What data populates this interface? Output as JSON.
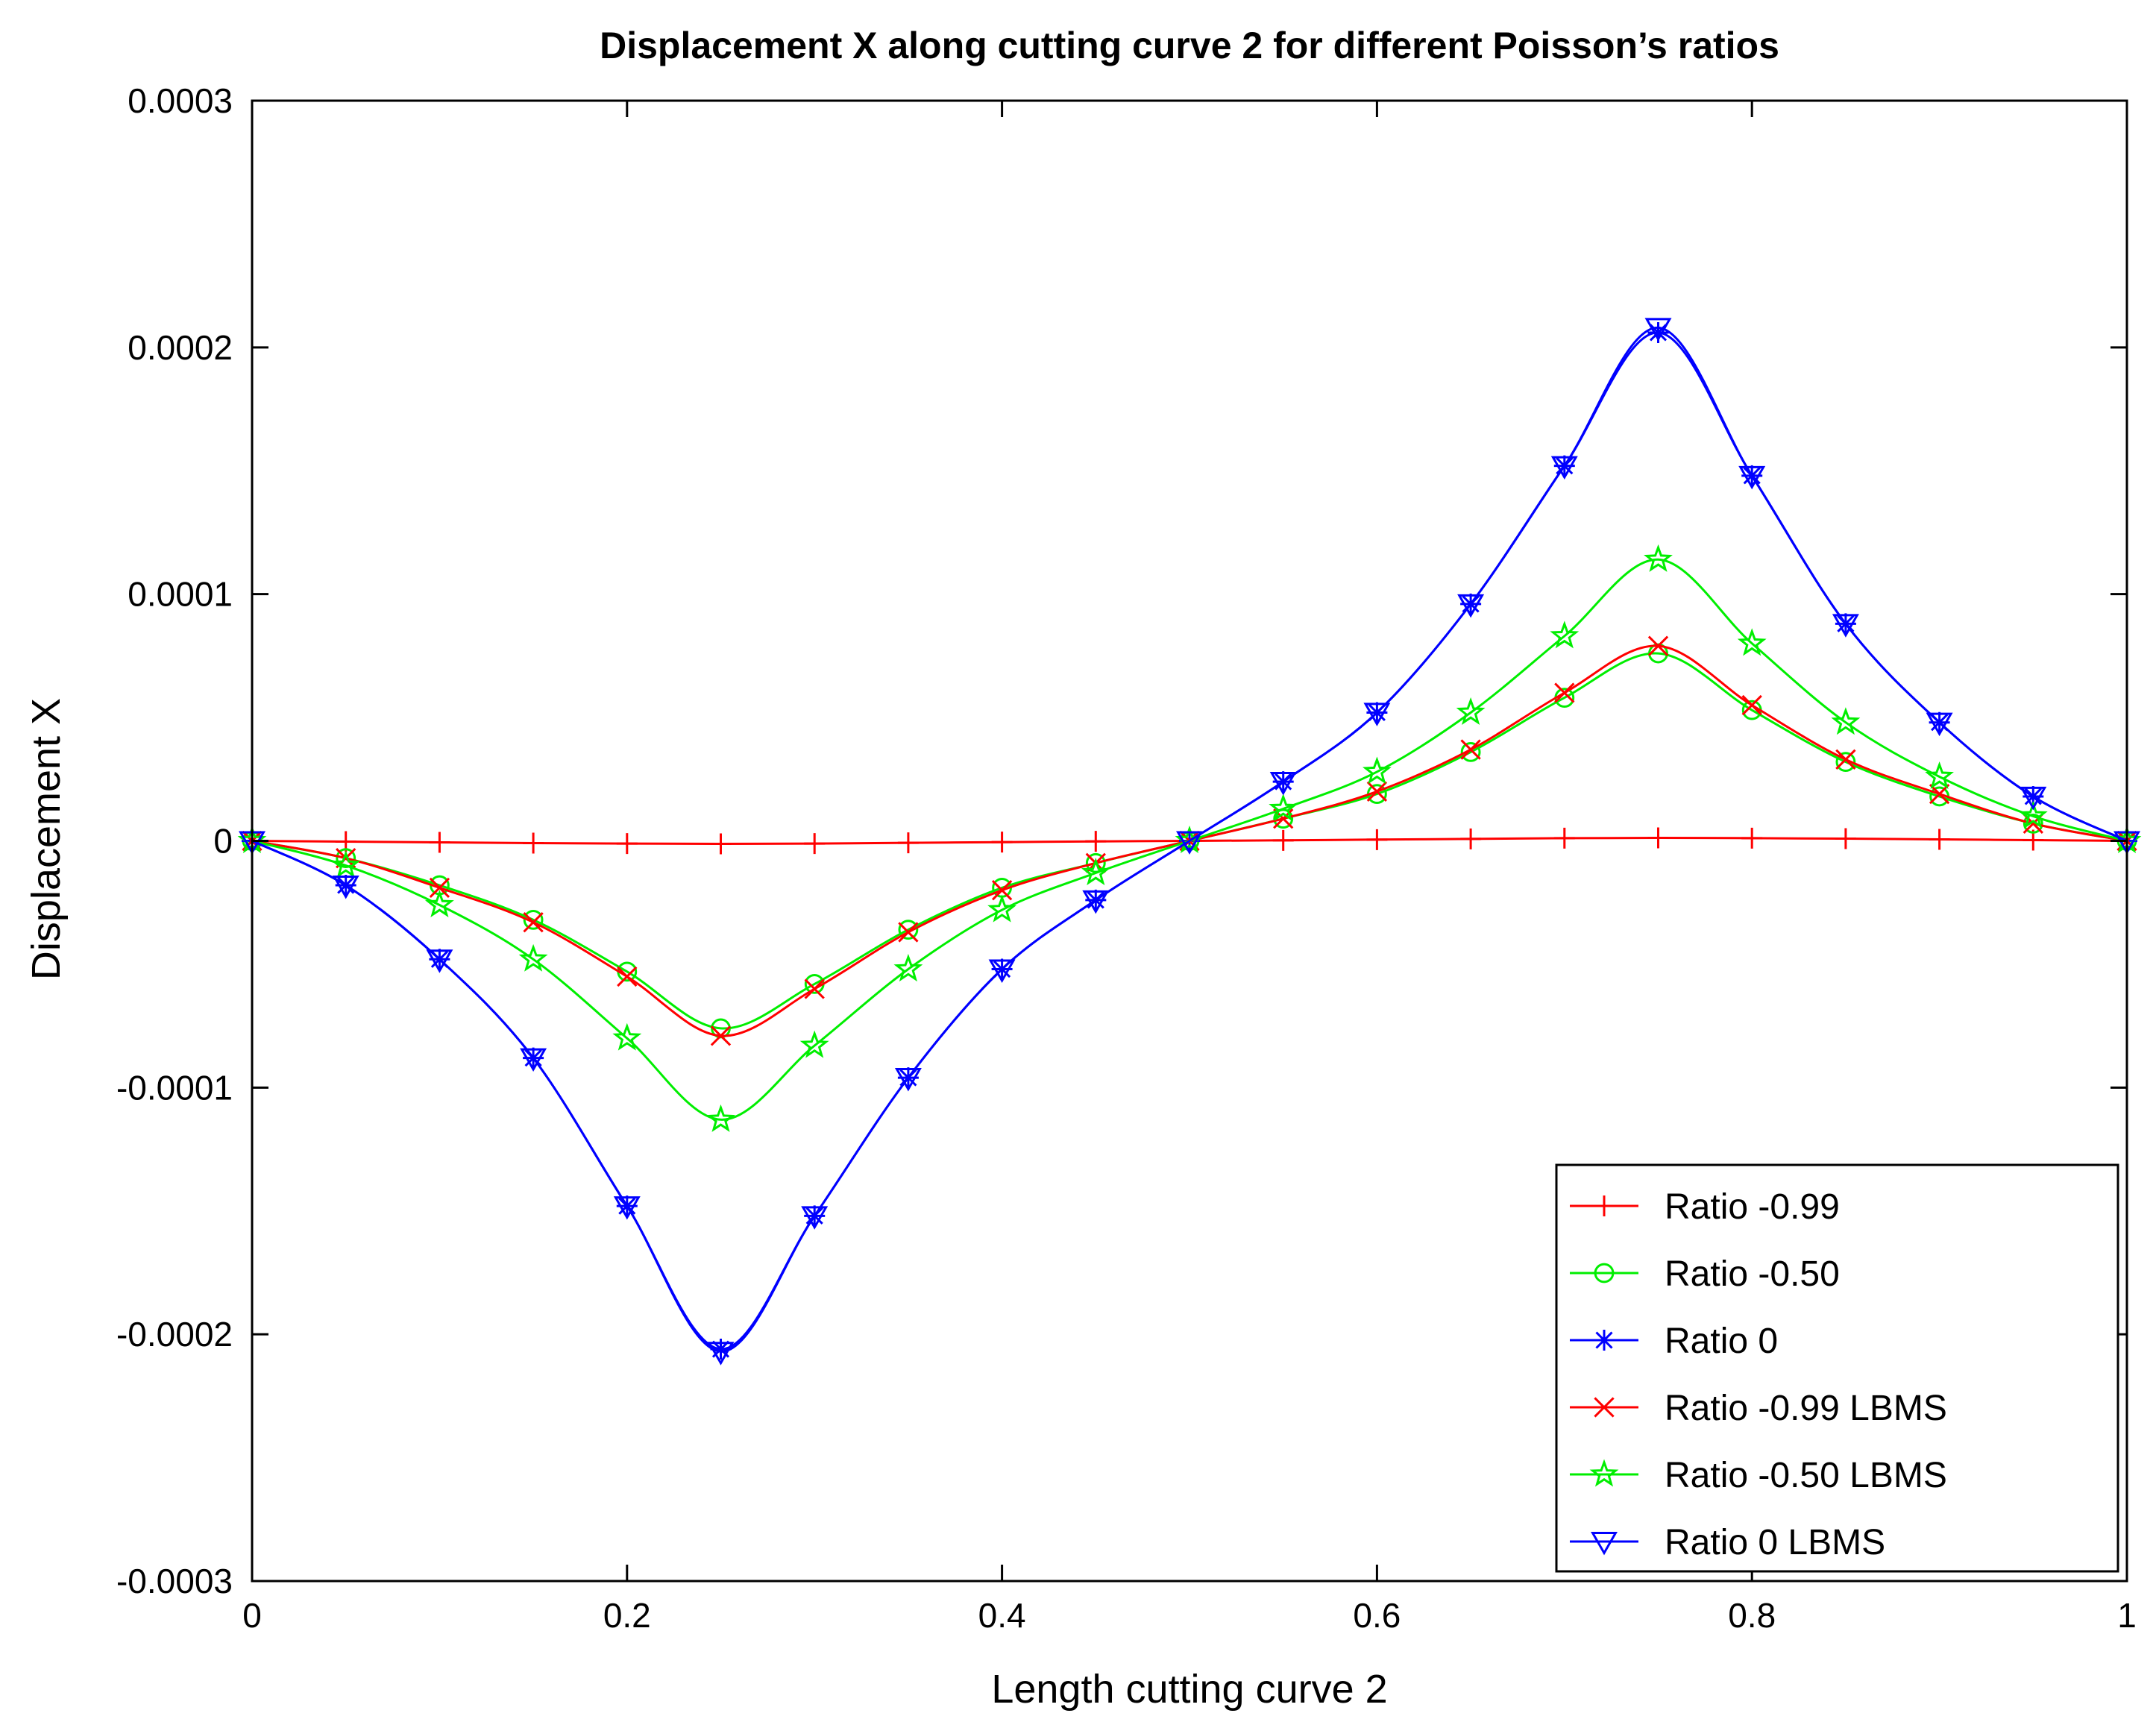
{
  "chart_data": {
    "type": "line",
    "title": "Displacement X along cutting curve 2 for different Poisson’s ratios",
    "xlabel": "Length cutting curve 2",
    "ylabel": "Displacement X",
    "xlim": [
      0,
      1
    ],
    "ylim": [
      -0.0003,
      0.0003
    ],
    "x_ticks": [
      0,
      0.2,
      0.4,
      0.6,
      0.8,
      1
    ],
    "x_tick_labels": [
      "0",
      "0.2",
      "0.4",
      "0.6",
      "0.8",
      "1"
    ],
    "y_ticks": [
      -0.0003,
      -0.0002,
      -0.0001,
      0,
      0.0001,
      0.0002,
      0.0003
    ],
    "y_tick_labels": [
      "-0.0003",
      "-0.0002",
      "-0.0001",
      "0",
      "0.0001",
      "0.0002",
      "0.0003"
    ],
    "legend_position": "bottom-right",
    "x": [
      0,
      0.05,
      0.1,
      0.15,
      0.2,
      0.25,
      0.3,
      0.35,
      0.4,
      0.45,
      0.5,
      0.55,
      0.6,
      0.65,
      0.7,
      0.75,
      0.8,
      0.85,
      0.9,
      0.95,
      1
    ],
    "series": [
      {
        "name": "Ratio -0.99",
        "color": "#ff0000",
        "marker": "plus",
        "values": [
          0,
          -3e-07,
          -6e-07,
          -9e-07,
          -1.1e-06,
          -1.2e-06,
          -1.1e-06,
          -8e-07,
          -5e-07,
          -2e-07,
          0,
          2e-07,
          5e-07,
          8e-07,
          1.1e-06,
          1.2e-06,
          1.1e-06,
          9e-07,
          6e-07,
          3e-07,
          0
        ]
      },
      {
        "name": "Ratio -0.50",
        "color": "#00ee00",
        "marker": "circle",
        "values": [
          0,
          -7e-06,
          -1.8e-05,
          -3.2e-05,
          -5.3e-05,
          -7.6e-05,
          -5.8e-05,
          -3.6e-05,
          -1.9e-05,
          -9e-06,
          0,
          9e-06,
          1.9e-05,
          3.6e-05,
          5.8e-05,
          7.6e-05,
          5.3e-05,
          3.2e-05,
          1.8e-05,
          7e-06,
          0
        ]
      },
      {
        "name": "Ratio 0",
        "color": "#0000ff",
        "marker": "asterisk",
        "values": [
          0,
          -1.8e-05,
          -4.8e-05,
          -8.8e-05,
          -0.000148,
          -0.000206,
          -0.000152,
          -9.6e-05,
          -5.2e-05,
          -2.4e-05,
          0,
          2.4e-05,
          5.2e-05,
          9.6e-05,
          0.000152,
          0.000206,
          0.000148,
          8.8e-05,
          4.8e-05,
          1.8e-05,
          0
        ]
      },
      {
        "name": "Ratio -0.99 LBMS",
        "color": "#ff0000",
        "marker": "cross",
        "values": [
          0,
          -7e-06,
          -1.9e-05,
          -3.3e-05,
          -5.5e-05,
          -7.9e-05,
          -6e-05,
          -3.7e-05,
          -2e-05,
          -9e-06,
          0,
          9e-06,
          2e-05,
          3.7e-05,
          6e-05,
          7.9e-05,
          5.5e-05,
          3.3e-05,
          1.9e-05,
          7e-06,
          0
        ]
      },
      {
        "name": "Ratio -0.50 LBMS",
        "color": "#00ee00",
        "marker": "star",
        "values": [
          0,
          -1e-05,
          -2.6e-05,
          -4.8e-05,
          -8e-05,
          -0.000113,
          -8.3e-05,
          -5.2e-05,
          -2.8e-05,
          -1.3e-05,
          0,
          1.3e-05,
          2.8e-05,
          5.2e-05,
          8.3e-05,
          0.000114,
          8e-05,
          4.8e-05,
          2.6e-05,
          1e-05,
          0
        ]
      },
      {
        "name": "Ratio 0 LBMS",
        "color": "#0000ff",
        "marker": "triangle-down",
        "values": [
          0,
          -1.8e-05,
          -4.8e-05,
          -8.8e-05,
          -0.000148,
          -0.000207,
          -0.000152,
          -9.6e-05,
          -5.2e-05,
          -2.4e-05,
          0,
          2.4e-05,
          5.2e-05,
          9.6e-05,
          0.000152,
          0.000208,
          0.000148,
          8.8e-05,
          4.8e-05,
          1.8e-05,
          0
        ]
      }
    ]
  }
}
